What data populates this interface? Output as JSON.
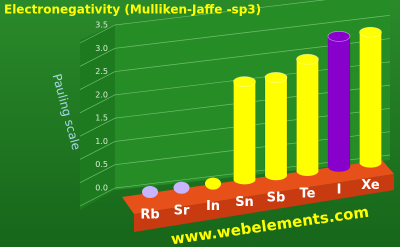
{
  "chart_data": {
    "type": "bar3d",
    "title": "Electronegativity (Mulliken-Jaffe -sp3)",
    "y_label": "Pauling scale",
    "footer": "www.webelements.com",
    "categories": [
      "Rb",
      "Sr",
      "In",
      "Sn",
      "Sb",
      "Te",
      "I",
      "Xe"
    ],
    "values": [
      null,
      null,
      null,
      2.1,
      2.1,
      2.4,
      2.8,
      2.8
    ],
    "colors": [
      "#c8b4ff",
      "#c8b4ff",
      "#ffff00",
      "#ffff00",
      "#ffff00",
      "#ffff00",
      "#8800cc",
      "#ffff00"
    ],
    "ylim": [
      0,
      3.5
    ],
    "yticks": [
      {
        "value": 0,
        "label": "0.0"
      },
      0.5,
      {
        "value": 1,
        "label": "1.0"
      },
      1.5,
      {
        "value": 2,
        "label": "2.0"
      },
      2.5,
      {
        "value": 3,
        "label": "3.0"
      },
      3.5
    ],
    "grid": true
  }
}
